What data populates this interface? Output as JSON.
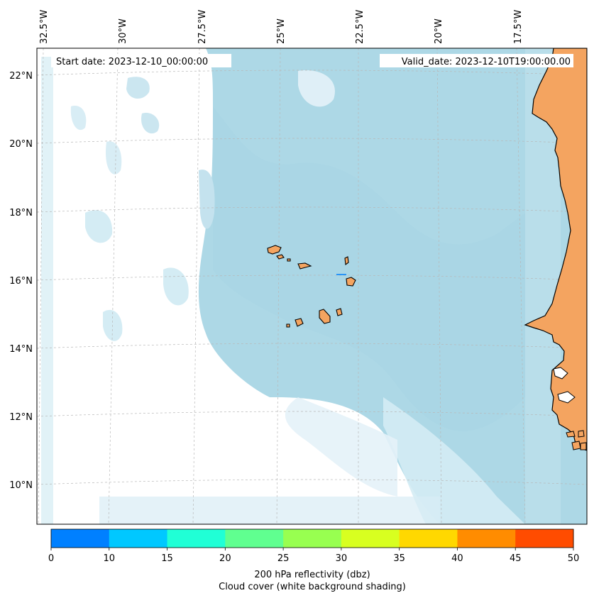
{
  "map": {
    "start_date": "Start date: 2023-12-10_00:00:00",
    "valid_date": "Valid_date: 2023-12-10T19:00:00.00",
    "lon_labels": [
      "32.5°W",
      "30°W",
      "27.5°W",
      "25°W",
      "22.5°W",
      "20°W",
      "17.5°W"
    ],
    "lat_labels": [
      "22°N",
      "20°N",
      "18°N",
      "16°N",
      "14°N",
      "12°N",
      "10°N"
    ],
    "colors": {
      "ocean_cloud": "#add8e6",
      "land": "#f4a460",
      "coastline": "#000000",
      "gridline": "#b8b8b8"
    }
  },
  "colorbar": {
    "label_line1": "200 hPa reflectivity (dbz)",
    "label_line2": "Cloud cover (white background shading)",
    "ticks": [
      "0",
      "10",
      "15",
      "20",
      "25",
      "30",
      "35",
      "40",
      "45",
      "50"
    ],
    "colors": [
      "#0080ff",
      "#00c8ff",
      "#20ffd6",
      "#60ff90",
      "#98ff50",
      "#d8ff20",
      "#ffd800",
      "#ff8c00",
      "#ff4c00"
    ]
  }
}
